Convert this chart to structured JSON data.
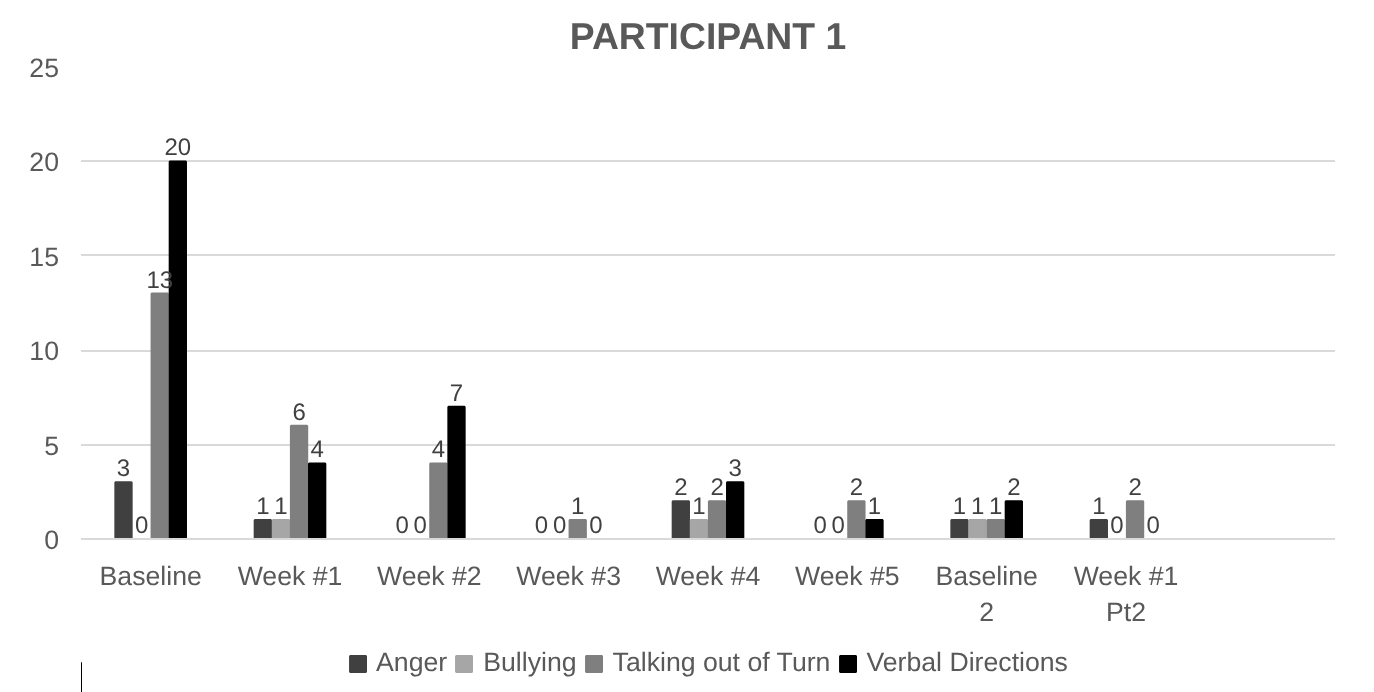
{
  "chart_data": {
    "type": "bar",
    "title": "PARTICIPANT 1",
    "categories": [
      "Baseline",
      "Week #1",
      "Week #2",
      "Week #3",
      "Week #4",
      "Week #5",
      "Baseline 2",
      "Week #1 Pt2",
      null
    ],
    "series": [
      {
        "name": "Anger",
        "color": "#404040",
        "values": [
          3,
          1,
          0,
          0,
          2,
          0,
          1,
          1,
          null
        ]
      },
      {
        "name": "Bullying",
        "color": "#a6a6a6",
        "values": [
          0,
          1,
          0,
          0,
          1,
          0,
          1,
          0,
          null
        ]
      },
      {
        "name": "Talking out of Turn",
        "color": "#7f7f7f",
        "values": [
          13,
          6,
          4,
          1,
          2,
          2,
          1,
          2,
          null
        ]
      },
      {
        "name": "Verbal Directions",
        "color": "#000000",
        "values": [
          20,
          4,
          7,
          0,
          3,
          1,
          2,
          0,
          null
        ]
      }
    ],
    "ylim": [
      0,
      25
    ],
    "yticks": [
      0,
      5,
      10,
      15,
      20,
      25
    ],
    "grid": "y",
    "legend": "bottom",
    "data_labels": true
  }
}
